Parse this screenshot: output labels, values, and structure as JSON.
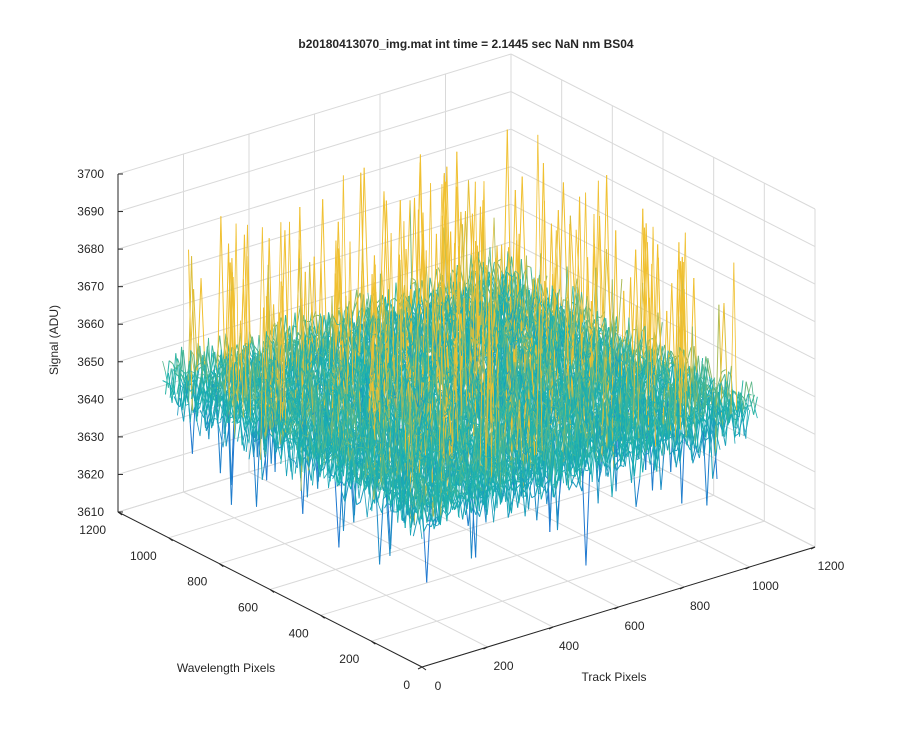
{
  "chart_data": {
    "type": "surface",
    "title": "b20180413070_img.mat int time = 2.1445 sec  NaN nm BS04",
    "xlabel": "Track Pixels",
    "ylabel": "Wavelength Pixels",
    "zlabel": "Signal (ADU)",
    "x_range": [
      0,
      1200
    ],
    "y_range": [
      0,
      1200
    ],
    "z_range": [
      3610,
      3700
    ],
    "x_ticks": [
      "0",
      "200",
      "400",
      "600",
      "800",
      "1000",
      "1200"
    ],
    "y_ticks": [
      "0",
      "200",
      "400",
      "600",
      "800",
      "1000",
      "1200"
    ],
    "z_ticks": [
      "3610",
      "3620",
      "3630",
      "3640",
      "3650",
      "3660",
      "3670",
      "3680",
      "3690",
      "3700"
    ],
    "grid": true,
    "colormap": "parula",
    "data_extent": {
      "x": [
        0,
        1024
      ],
      "y": [
        0,
        1024
      ]
    },
    "signal_mean": 3651,
    "signal_spread": 9,
    "colors": {
      "low": "#1f78d0",
      "mid": "#19b3b0",
      "high": "#f0c030",
      "axes": "#262626",
      "grid": "#d9d9d9",
      "background": "#ffffff"
    }
  }
}
